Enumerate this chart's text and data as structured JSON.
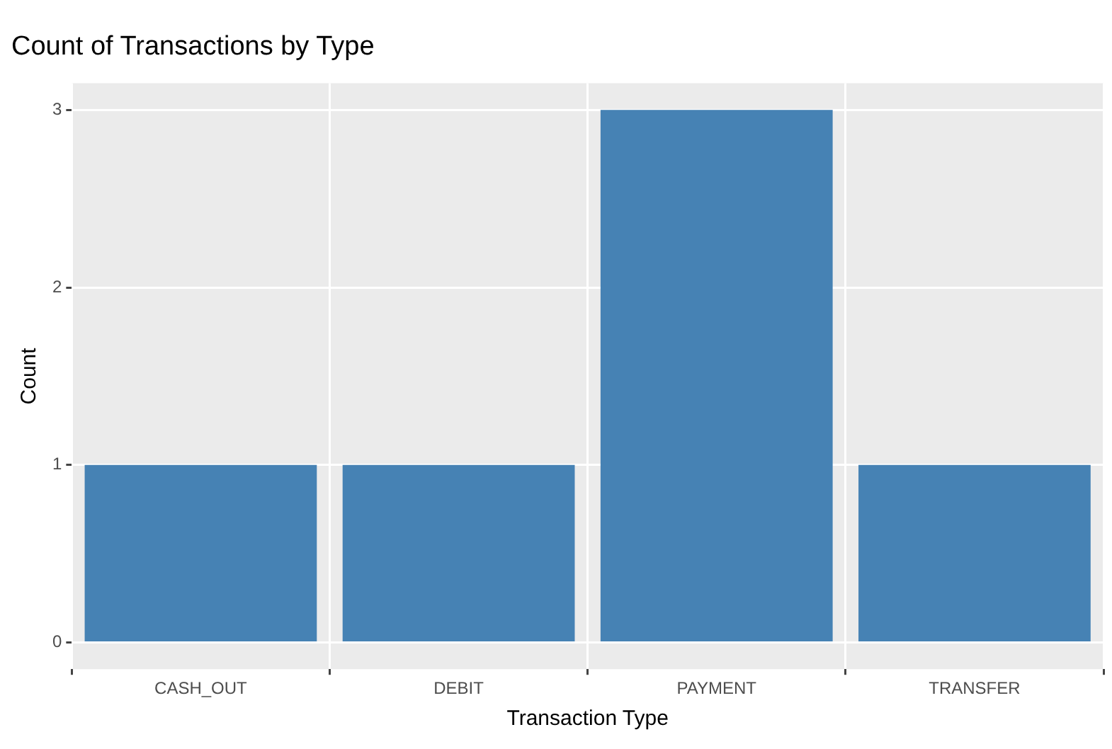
{
  "chart_data": {
    "type": "bar",
    "title": "Count of Transactions by Type",
    "xlabel": "Transaction Type",
    "ylabel": "Count",
    "categories": [
      "CASH_OUT",
      "DEBIT",
      "PAYMENT",
      "TRANSFER"
    ],
    "values": [
      1,
      1,
      3,
      1
    ],
    "color": "#4682b4",
    "ylim": [
      -0.15,
      3.15
    ],
    "yticks": [
      0,
      1,
      2,
      3
    ],
    "grid": true
  }
}
